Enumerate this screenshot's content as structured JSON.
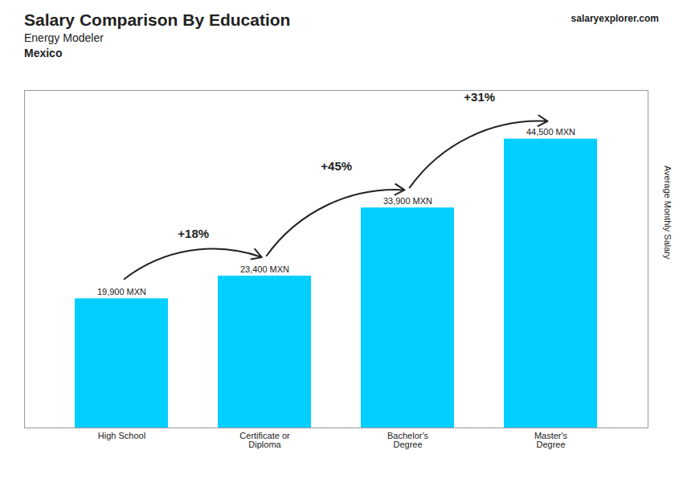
{
  "chart_data": {
    "type": "bar",
    "title": "Salary Comparison By Education",
    "subtitle": [
      "Energy Modeler",
      "Mexico"
    ],
    "ylabel": "Average Monthly Salary",
    "categories": [
      "High School",
      "Certificate or\nDiploma",
      "Bachelor's\nDegree",
      "Master's\nDegree"
    ],
    "values": [
      19900,
      23400,
      33900,
      44500
    ],
    "value_labels": [
      "19,900 MXN",
      "23,400 MXN",
      "33,900 MXN",
      "44,500 MXN"
    ],
    "data_labels": true,
    "color": "#00cfff",
    "ylim": [
      0,
      52000
    ],
    "tick_labels": "x",
    "grid": false,
    "annotations": [
      {
        "text": "+18%",
        "from": "High School",
        "to": "Certificate or\nDiploma"
      },
      {
        "text": "+45%",
        "from": "Certificate or\nDiploma",
        "to": "Bachelor's\nDegree"
      },
      {
        "text": "+31%",
        "from": "Bachelor's\nDegree",
        "to": "Master's\nDegree"
      },
      {
        "text": "salaryexplorer.com"
      }
    ]
  }
}
